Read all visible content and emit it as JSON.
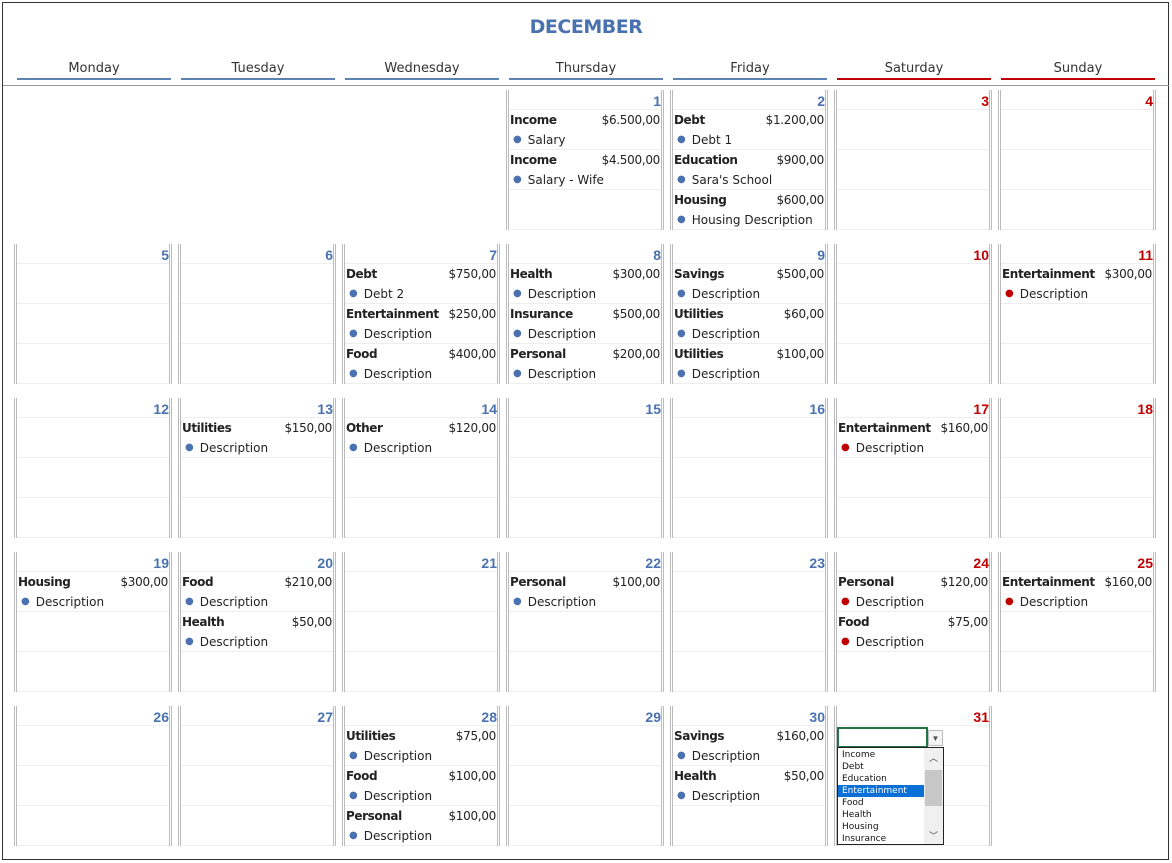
{
  "title": "DECEMBER",
  "colors": {
    "weekday": "#4a72b0",
    "weekend": "#c00000",
    "dropdown_selected": "#0a6fd6"
  },
  "weekdays": [
    {
      "label": "Monday",
      "weekend": false
    },
    {
      "label": "Tuesday",
      "weekend": false
    },
    {
      "label": "Wednesday",
      "weekend": false
    },
    {
      "label": "Thursday",
      "weekend": false
    },
    {
      "label": "Friday",
      "weekend": false
    },
    {
      "label": "Saturday",
      "weekend": true
    },
    {
      "label": "Sunday",
      "weekend": true
    }
  ],
  "weeks": [
    [
      null,
      null,
      null,
      {
        "day": "1",
        "entries": [
          {
            "category": "Income",
            "amount": "$6.500,00",
            "desc": "Salary"
          },
          {
            "category": "Income",
            "amount": "$4.500,00",
            "desc": "Salary - Wife"
          }
        ]
      },
      {
        "day": "2",
        "entries": [
          {
            "category": "Debt",
            "amount": "$1.200,00",
            "desc": "Debt 1"
          },
          {
            "category": "Education",
            "amount": "$900,00",
            "desc": "Sara's School"
          },
          {
            "category": "Housing",
            "amount": "$600,00",
            "desc": "Housing Description"
          }
        ]
      },
      {
        "day": "3",
        "entries": []
      },
      {
        "day": "4",
        "entries": []
      }
    ],
    [
      {
        "day": "5",
        "entries": []
      },
      {
        "day": "6",
        "entries": []
      },
      {
        "day": "7",
        "entries": [
          {
            "category": "Debt",
            "amount": "$750,00",
            "desc": "Debt 2"
          },
          {
            "category": "Entertainment",
            "amount": "$250,00",
            "desc": "Description"
          },
          {
            "category": "Food",
            "amount": "$400,00",
            "desc": "Description"
          }
        ]
      },
      {
        "day": "8",
        "entries": [
          {
            "category": "Health",
            "amount": "$300,00",
            "desc": "Description"
          },
          {
            "category": "Insurance",
            "amount": "$500,00",
            "desc": "Description"
          },
          {
            "category": "Personal",
            "amount": "$200,00",
            "desc": "Description"
          }
        ]
      },
      {
        "day": "9",
        "entries": [
          {
            "category": "Savings",
            "amount": "$500,00",
            "desc": "Description"
          },
          {
            "category": "Utilities",
            "amount": "$60,00",
            "desc": "Description"
          },
          {
            "category": "Utilities",
            "amount": "$100,00",
            "desc": "Description"
          }
        ]
      },
      {
        "day": "10",
        "entries": []
      },
      {
        "day": "11",
        "entries": [
          {
            "category": "Entertainment",
            "amount": "$300,00",
            "desc": "Description"
          }
        ]
      }
    ],
    [
      {
        "day": "12",
        "entries": []
      },
      {
        "day": "13",
        "entries": [
          {
            "category": "Utilities",
            "amount": "$150,00",
            "desc": "Description"
          }
        ]
      },
      {
        "day": "14",
        "entries": [
          {
            "category": "Other",
            "amount": "$120,00",
            "desc": "Description"
          }
        ]
      },
      {
        "day": "15",
        "entries": []
      },
      {
        "day": "16",
        "entries": []
      },
      {
        "day": "17",
        "entries": [
          {
            "category": "Entertainment",
            "amount": "$160,00",
            "desc": "Description"
          }
        ]
      },
      {
        "day": "18",
        "entries": []
      }
    ],
    [
      {
        "day": "19",
        "entries": [
          {
            "category": "Housing",
            "amount": "$300,00",
            "desc": "Description"
          }
        ]
      },
      {
        "day": "20",
        "entries": [
          {
            "category": "Food",
            "amount": "$210,00",
            "desc": "Description"
          },
          {
            "category": "Health",
            "amount": "$50,00",
            "desc": "Description"
          }
        ]
      },
      {
        "day": "21",
        "entries": []
      },
      {
        "day": "22",
        "entries": [
          {
            "category": "Personal",
            "amount": "$100,00",
            "desc": "Description"
          }
        ]
      },
      {
        "day": "23",
        "entries": []
      },
      {
        "day": "24",
        "entries": [
          {
            "category": "Personal",
            "amount": "$120,00",
            "desc": "Description"
          },
          {
            "category": "Food",
            "amount": "$75,00",
            "desc": "Description"
          }
        ]
      },
      {
        "day": "25",
        "entries": [
          {
            "category": "Entertainment",
            "amount": "$160,00",
            "desc": "Description"
          }
        ]
      }
    ],
    [
      {
        "day": "26",
        "entries": []
      },
      {
        "day": "27",
        "entries": []
      },
      {
        "day": "28",
        "entries": [
          {
            "category": "Utilities",
            "amount": "$75,00",
            "desc": "Description"
          },
          {
            "category": "Food",
            "amount": "$100,00",
            "desc": "Description"
          },
          {
            "category": "Personal",
            "amount": "$100,00",
            "desc": "Description"
          }
        ]
      },
      {
        "day": "29",
        "entries": []
      },
      {
        "day": "30",
        "entries": [
          {
            "category": "Savings",
            "amount": "$160,00",
            "desc": "Description"
          },
          {
            "category": "Health",
            "amount": "$50,00",
            "desc": "Description"
          }
        ]
      },
      {
        "day": "31",
        "entries": []
      },
      null
    ]
  ],
  "dropdown": {
    "value": "",
    "options": [
      "Income",
      "Debt",
      "Education",
      "Entertainment",
      "Food",
      "Health",
      "Housing",
      "Insurance"
    ],
    "selected": "Entertainment"
  }
}
